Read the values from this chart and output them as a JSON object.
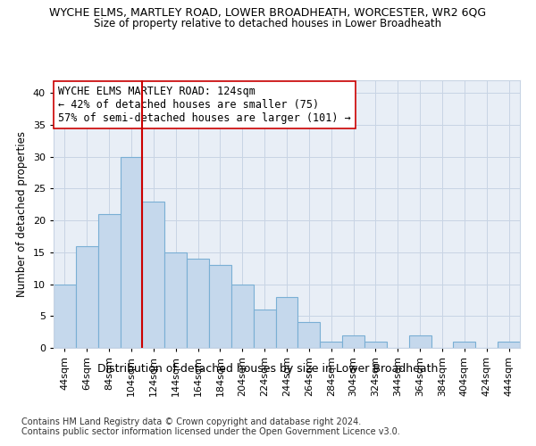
{
  "title_line1": "WYCHE ELMS, MARTLEY ROAD, LOWER BROADHEATH, WORCESTER, WR2 6QG",
  "title_line2": "Size of property relative to detached houses in Lower Broadheath",
  "xlabel": "Distribution of detached houses by size in Lower Broadheath",
  "ylabel": "Number of detached properties",
  "footnote1": "Contains HM Land Registry data © Crown copyright and database right 2024.",
  "footnote2": "Contains public sector information licensed under the Open Government Licence v3.0.",
  "categories": [
    "44sqm",
    "64sqm",
    "84sqm",
    "104sqm",
    "124sqm",
    "144sqm",
    "164sqm",
    "184sqm",
    "204sqm",
    "224sqm",
    "244sqm",
    "264sqm",
    "284sqm",
    "304sqm",
    "324sqm",
    "344sqm",
    "364sqm",
    "384sqm",
    "404sqm",
    "424sqm",
    "444sqm"
  ],
  "values": [
    10,
    16,
    21,
    30,
    23,
    15,
    14,
    13,
    10,
    6,
    8,
    4,
    1,
    2,
    1,
    0,
    2,
    0,
    1,
    0,
    1
  ],
  "bar_color": "#c5d8ec",
  "bar_edge_color": "#7aafd4",
  "bar_edge_width": 0.8,
  "red_line_index": 4,
  "red_line_color": "#cc0000",
  "annotation_line1": "WYCHE ELMS MARTLEY ROAD: 124sqm",
  "annotation_line2": "← 42% of detached houses are smaller (75)",
  "annotation_line3": "57% of semi-detached houses are larger (101) →",
  "annotation_box_color": "#ffffff",
  "annotation_box_edge_color": "#cc0000",
  "ylim": [
    0,
    42
  ],
  "yticks": [
    0,
    5,
    10,
    15,
    20,
    25,
    30,
    35,
    40
  ],
  "grid_color": "#c8d4e4",
  "bg_color": "#e8eef6",
  "title_fontsize": 9,
  "subtitle_fontsize": 8.5,
  "ylabel_fontsize": 8.5,
  "xlabel_fontsize": 9,
  "tick_fontsize": 8,
  "annotation_fontsize": 8.5,
  "footnote_fontsize": 7
}
